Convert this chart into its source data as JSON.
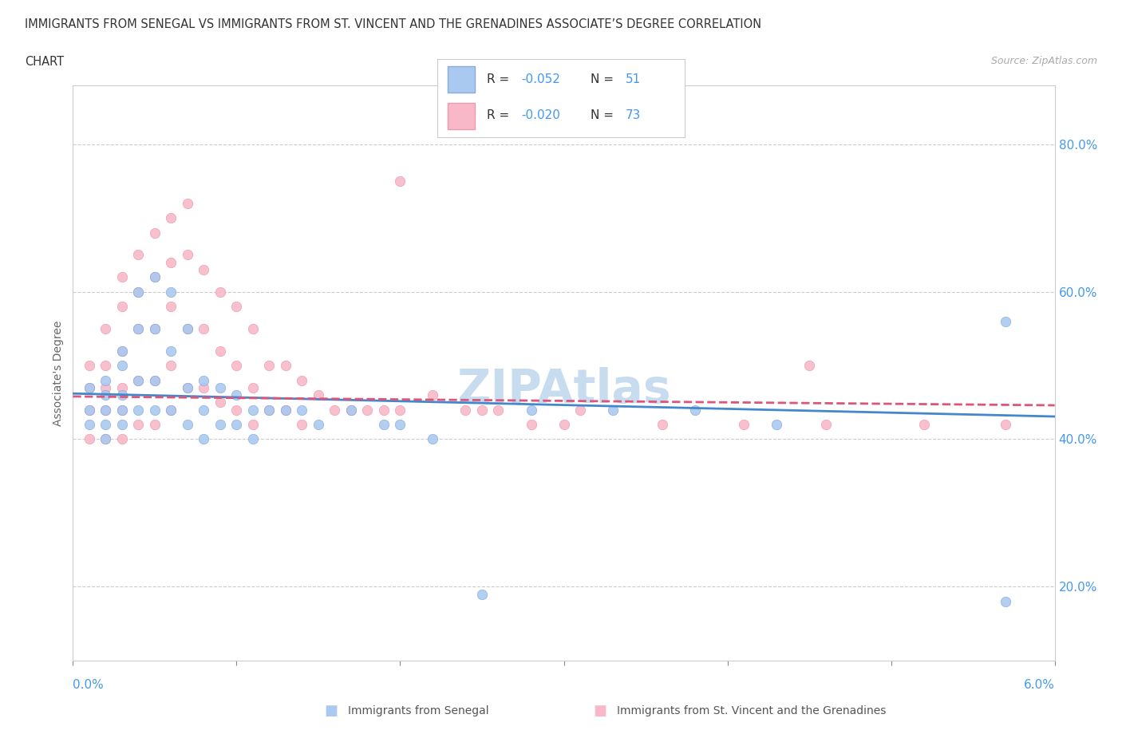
{
  "title_line1": "IMMIGRANTS FROM SENEGAL VS IMMIGRANTS FROM ST. VINCENT AND THE GRENADINES ASSOCIATE’S DEGREE CORRELATION",
  "title_line2": "CHART",
  "source_text": "Source: ZipAtlas.com",
  "ylabel_label": "Associate's Degree",
  "ytick_labels": [
    "20.0%",
    "40.0%",
    "60.0%",
    "80.0%"
  ],
  "ytick_values": [
    0.2,
    0.4,
    0.6,
    0.8
  ],
  "xmin": 0.0,
  "xmax": 0.06,
  "ymin": 0.1,
  "ymax": 0.88,
  "color_senegal": "#aac9f0",
  "color_stvincent": "#f8b8c8",
  "trendline_senegal_color": "#4488cc",
  "trendline_stvincent_color": "#dd5577",
  "watermark_color": "#c8dcf0",
  "senegal_x": [
    0.001,
    0.001,
    0.001,
    0.002,
    0.002,
    0.002,
    0.002,
    0.002,
    0.003,
    0.003,
    0.003,
    0.003,
    0.003,
    0.004,
    0.004,
    0.004,
    0.004,
    0.005,
    0.005,
    0.005,
    0.005,
    0.006,
    0.006,
    0.006,
    0.007,
    0.007,
    0.007,
    0.008,
    0.008,
    0.008,
    0.009,
    0.009,
    0.01,
    0.01,
    0.011,
    0.011,
    0.012,
    0.013,
    0.014,
    0.015,
    0.017,
    0.019,
    0.02,
    0.022,
    0.025,
    0.028,
    0.033,
    0.038,
    0.043,
    0.057,
    0.057
  ],
  "senegal_y": [
    0.47,
    0.44,
    0.42,
    0.48,
    0.46,
    0.44,
    0.42,
    0.4,
    0.52,
    0.5,
    0.46,
    0.44,
    0.42,
    0.6,
    0.55,
    0.48,
    0.44,
    0.62,
    0.55,
    0.48,
    0.44,
    0.6,
    0.52,
    0.44,
    0.55,
    0.47,
    0.42,
    0.48,
    0.44,
    0.4,
    0.47,
    0.42,
    0.46,
    0.42,
    0.44,
    0.4,
    0.44,
    0.44,
    0.44,
    0.42,
    0.44,
    0.42,
    0.42,
    0.4,
    0.19,
    0.44,
    0.44,
    0.44,
    0.42,
    0.18,
    0.56
  ],
  "stvincent_x": [
    0.001,
    0.001,
    0.001,
    0.001,
    0.002,
    0.002,
    0.002,
    0.002,
    0.002,
    0.003,
    0.003,
    0.003,
    0.003,
    0.003,
    0.003,
    0.004,
    0.004,
    0.004,
    0.004,
    0.004,
    0.005,
    0.005,
    0.005,
    0.005,
    0.005,
    0.006,
    0.006,
    0.006,
    0.006,
    0.006,
    0.007,
    0.007,
    0.007,
    0.007,
    0.008,
    0.008,
    0.008,
    0.009,
    0.009,
    0.009,
    0.01,
    0.01,
    0.01,
    0.011,
    0.011,
    0.011,
    0.012,
    0.012,
    0.013,
    0.013,
    0.014,
    0.014,
    0.015,
    0.016,
    0.017,
    0.018,
    0.019,
    0.02,
    0.022,
    0.024,
    0.026,
    0.028,
    0.031,
    0.036,
    0.041,
    0.046,
    0.052,
    0.057,
    0.062,
    0.02,
    0.025,
    0.03,
    0.045
  ],
  "stvincent_y": [
    0.5,
    0.47,
    0.44,
    0.4,
    0.55,
    0.5,
    0.47,
    0.44,
    0.4,
    0.62,
    0.58,
    0.52,
    0.47,
    0.44,
    0.4,
    0.65,
    0.6,
    0.55,
    0.48,
    0.42,
    0.68,
    0.62,
    0.55,
    0.48,
    0.42,
    0.7,
    0.64,
    0.58,
    0.5,
    0.44,
    0.72,
    0.65,
    0.55,
    0.47,
    0.63,
    0.55,
    0.47,
    0.6,
    0.52,
    0.45,
    0.58,
    0.5,
    0.44,
    0.55,
    0.47,
    0.42,
    0.5,
    0.44,
    0.5,
    0.44,
    0.48,
    0.42,
    0.46,
    0.44,
    0.44,
    0.44,
    0.44,
    0.75,
    0.46,
    0.44,
    0.44,
    0.42,
    0.44,
    0.42,
    0.42,
    0.42,
    0.42,
    0.42,
    0.42,
    0.44,
    0.44,
    0.42,
    0.5
  ],
  "trendline_senegal_slope": -0.52,
  "trendline_senegal_intercept": 0.462,
  "trendline_stvincent_slope": -0.2,
  "trendline_stvincent_intercept": 0.458
}
